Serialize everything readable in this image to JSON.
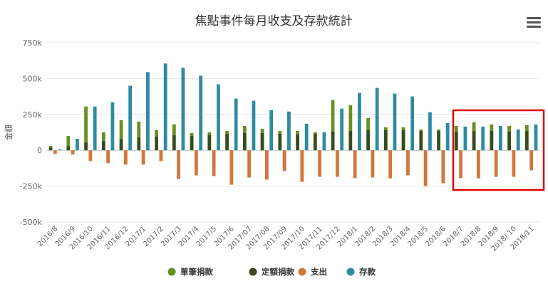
{
  "menu_icon": "hamburger-menu-icon",
  "chart_data": {
    "type": "bar",
    "title": "焦點事件每月收支及存款統計",
    "ylabel": "金額",
    "ylim": [
      -500000,
      750000
    ],
    "yticks": [
      -500000,
      -250000,
      0,
      250000,
      500000,
      750000
    ],
    "ytick_labels": [
      "-500k",
      "-250k",
      "0",
      "250k",
      "500k",
      "750k"
    ],
    "grid": true,
    "legend_position": "bottom-center",
    "stacked_groups": [
      [
        "單筆捐款",
        "定額捐款"
      ],
      [
        "支出"
      ],
      [
        "存款"
      ]
    ],
    "categories": [
      "2016/8",
      "2016/9",
      "2016/10",
      "2016/11",
      "2016/12",
      "2017/1",
      "2017/2",
      "2017/3",
      "2017/4",
      "2017/5",
      "2017/6",
      "2017/07",
      "2017/08",
      "2017/09",
      "2017/10",
      "2017/11",
      "2017/12",
      "2018/1",
      "2018/2",
      "2018/3",
      "2018/4",
      "2018/5",
      "2018/6",
      "2018/7",
      "2018/8",
      "2018/9",
      "2018/ 10",
      "2018/11"
    ],
    "series": [
      {
        "name": "單筆捐款",
        "color": "#6b8e23",
        "values": [
          10000,
          70000,
          250000,
          60000,
          130000,
          110000,
          45000,
          75000,
          20000,
          20000,
          20000,
          50000,
          30000,
          20000,
          25000,
          10000,
          220000,
          180000,
          85000,
          20000,
          20000,
          10000,
          10000,
          40000,
          60000,
          45000,
          40000,
          40000
        ]
      },
      {
        "name": "定額捐款",
        "color": "#3b4a1c",
        "values": [
          20000,
          30000,
          55000,
          65000,
          80000,
          90000,
          95000,
          105000,
          100000,
          105000,
          115000,
          120000,
          120000,
          115000,
          110000,
          115000,
          130000,
          135000,
          140000,
          140000,
          140000,
          135000,
          135000,
          130000,
          135000,
          135000,
          130000,
          135000
        ]
      },
      {
        "name": "支出",
        "color": "#d2773a",
        "values": [
          -25000,
          -30000,
          -75000,
          -90000,
          -100000,
          -100000,
          -75000,
          -200000,
          -175000,
          -180000,
          -240000,
          -190000,
          -205000,
          -145000,
          -220000,
          -185000,
          -185000,
          -195000,
          -190000,
          -195000,
          -175000,
          -250000,
          -230000,
          -195000,
          -195000,
          -185000,
          -185000,
          -140000
        ]
      },
      {
        "name": "存款",
        "color": "#2e8ba3",
        "values": [
          5000,
          80000,
          305000,
          335000,
          450000,
          545000,
          605000,
          575000,
          520000,
          460000,
          360000,
          345000,
          280000,
          270000,
          185000,
          125000,
          290000,
          400000,
          435000,
          395000,
          375000,
          265000,
          190000,
          165000,
          165000,
          170000,
          145000,
          180000
        ]
      }
    ]
  }
}
